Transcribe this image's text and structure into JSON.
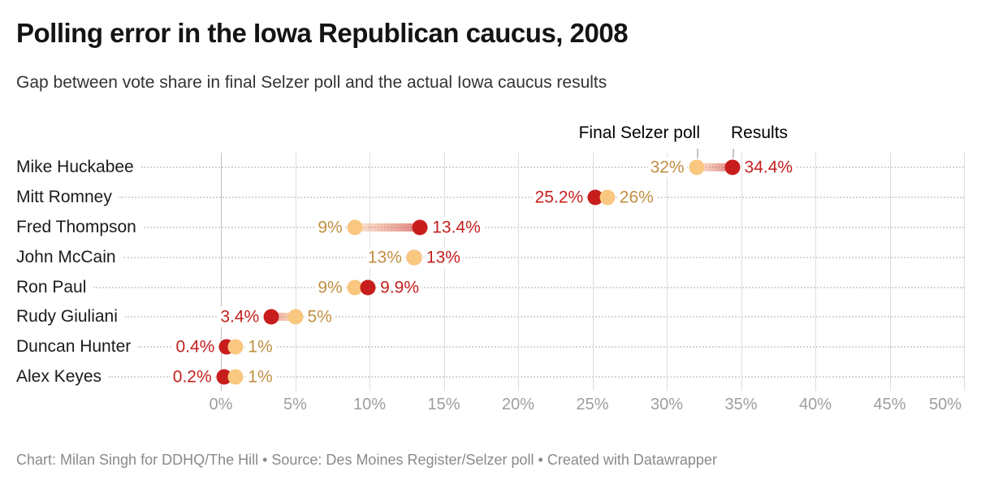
{
  "header": {
    "title": "Polling error in the Iowa Republican caucus, 2008",
    "subtitle": "Gap between vote share in final Selzer poll and the actual Iowa caucus results"
  },
  "legend": {
    "poll_label": "Final Selzer poll",
    "results_label": "Results"
  },
  "footer": {
    "text": "Chart: Milan Singh for DDHQ/The Hill • Source: Des Moines Register/Selzer poll • Created with Datawrapper"
  },
  "colors": {
    "poll_dot": "#f9c77f",
    "poll_text": "#c18e41",
    "result_dot": "#c71e1d",
    "result_text": "#c4201e",
    "gridline": "#dedede",
    "zero_gridline": "#c2c2c2",
    "axis_text": "#9e9e9e",
    "category_text": "#1b1b1b"
  },
  "chart_data": {
    "type": "dumbbell",
    "title": "Polling error in the Iowa Republican caucus, 2008",
    "subtitle": "Gap between vote share in final Selzer poll and the actual Iowa caucus results",
    "categories": [
      "Mike Huckabee",
      "Mitt Romney",
      "Fred Thompson",
      "John McCain",
      "Ron Paul",
      "Rudy Giuliani",
      "Duncan Hunter",
      "Alex Keyes"
    ],
    "series": [
      {
        "name": "Final Selzer poll",
        "values": [
          32,
          26,
          9,
          13,
          9,
          5,
          1,
          1
        ],
        "labels": [
          "32%",
          "26%",
          "9%",
          "13%",
          "9%",
          "5%",
          "1%",
          "1%"
        ]
      },
      {
        "name": "Results",
        "values": [
          34.4,
          25.2,
          13.4,
          13,
          9.9,
          3.4,
          0.4,
          0.2
        ],
        "labels": [
          "34.4%",
          "25.2%",
          "13.4%",
          "13%",
          "9.9%",
          "3.4%",
          "0.4%",
          "0.2%"
        ]
      }
    ],
    "x_ticks": [
      "0%",
      "5%",
      "10%",
      "15%",
      "20%",
      "25%",
      "30%",
      "35%",
      "40%",
      "45%",
      "50%"
    ],
    "x_tick_values": [
      0,
      5,
      10,
      15,
      20,
      25,
      30,
      35,
      40,
      45,
      50
    ],
    "xlim": [
      0,
      50
    ],
    "grid": true,
    "legend_position": "top, anchored above first-row dots"
  }
}
